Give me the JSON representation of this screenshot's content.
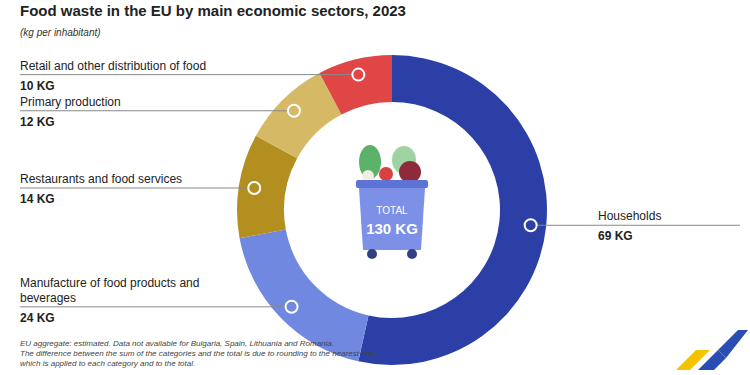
{
  "chart_data": {
    "type": "donut",
    "title": "Food waste in the EU by main economic sectors, 2023",
    "subtitle": "(kg per inhabitant)",
    "categories": [
      "Households",
      "Manufacture of food products and beverages",
      "Restaurants and food services",
      "Primary production",
      "Retail and other distribution of food"
    ],
    "values": [
      69,
      24,
      14,
      12,
      10
    ],
    "value_labels": [
      "69 KG",
      "24 KG",
      "14 KG",
      "12 KG",
      "10 KG"
    ],
    "colors": [
      "#2b3fa6",
      "#7088e0",
      "#b38f1f",
      "#d5b964",
      "#e04646"
    ],
    "total": {
      "label": "TOTAL",
      "value": 130,
      "value_label": "130 KG"
    },
    "footnote": [
      "EU aggregate: estimated. Data not available for Bulgaria, Spain, Lithuania and Romania.",
      "The difference between the sum of the categories and the total is due to rounding to the nearest unit,",
      "which is applied to each category and to the total."
    ]
  }
}
